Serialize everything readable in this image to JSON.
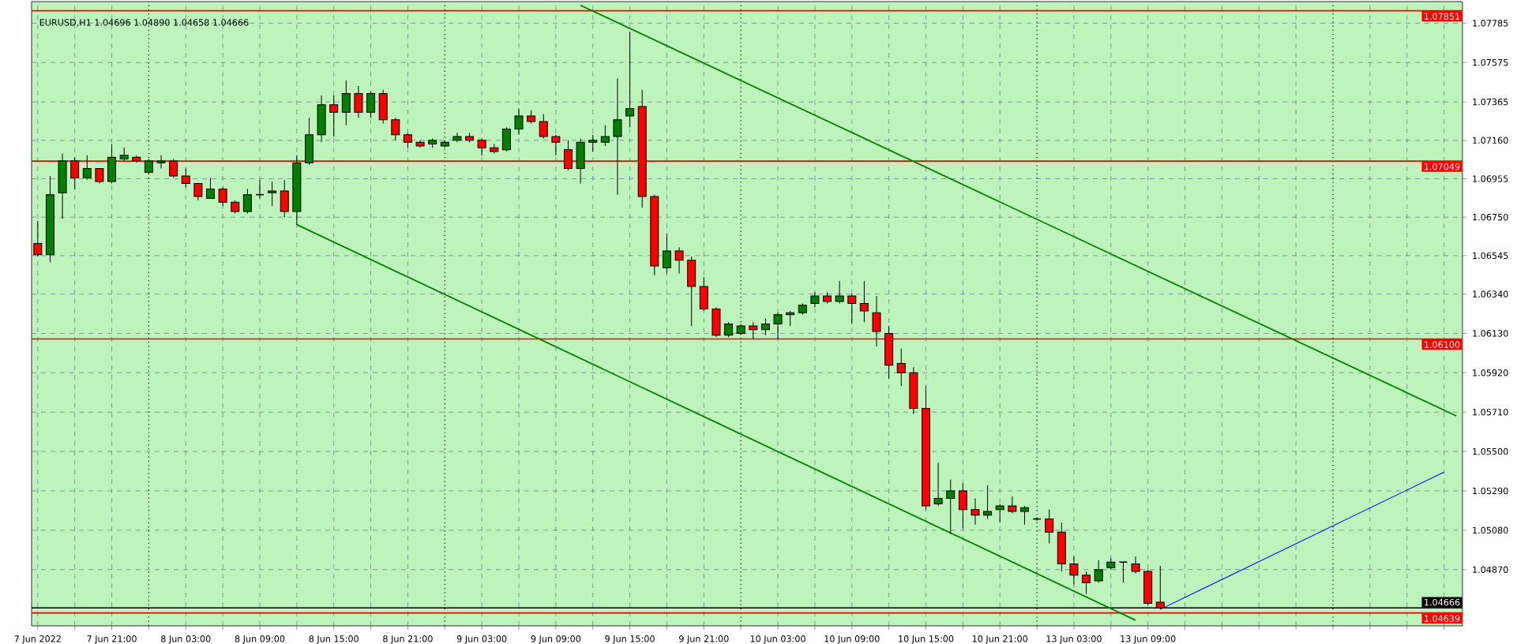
{
  "chart_data": {
    "type": "candlestick",
    "title": "EURUSD,H1  1.04696 1.04890 1.04658 1.04666",
    "categories": [
      "7 Jun 2022",
      null,
      null,
      null,
      null,
      null,
      "7 Jun 21:00",
      null,
      null,
      null,
      null,
      null,
      "8 Jun 03:00",
      null,
      null,
      null,
      null,
      null,
      "8 Jun 09:00",
      null,
      null,
      null,
      null,
      null,
      "8 Jun 15:00",
      null,
      null,
      null,
      null,
      null,
      "8 Jun 21:00",
      null,
      null,
      null,
      null,
      null,
      "9 Jun 03:00",
      null,
      null,
      null,
      null,
      null,
      "9 Jun 09:00",
      null,
      null,
      null,
      null,
      null,
      "9 Jun 15:00",
      null,
      null,
      null,
      null,
      null,
      "9 Jun 21:00",
      null,
      null,
      null,
      null,
      null,
      "10 Jun 03:00",
      null,
      null,
      null,
      null,
      null,
      "10 Jun 09:00",
      null,
      null,
      null,
      null,
      null,
      "10 Jun 15:00",
      null,
      null,
      null,
      null,
      null,
      "10 Jun 21:00",
      null,
      null,
      null,
      null,
      null,
      "13 Jun 03:00",
      null,
      null,
      null,
      null,
      null,
      "13 Jun 09:00",
      null,
      null,
      null,
      null,
      null,
      null,
      null,
      null,
      null,
      null,
      null,
      null,
      null,
      null,
      null,
      null,
      null,
      null,
      null,
      null,
      null,
      null,
      null,
      null,
      null
    ],
    "ylim": [
      1.0457,
      1.079
    ],
    "yticks": [
      1.07785,
      1.07575,
      1.07365,
      {
        "value": 1.0716,
        "label": "1.07160"
      },
      1.06955,
      {
        "value": 1.0675,
        "label": "1.06750"
      },
      1.06545,
      {
        "value": 1.0634,
        "label": "1.06340"
      },
      {
        "value": 1.0613,
        "label": "1.06130"
      },
      {
        "value": 1.0592,
        "label": "1.05920"
      },
      {
        "value": 1.0571,
        "label": "1.05710"
      },
      {
        "value": 1.055,
        "label": "1.05500"
      },
      {
        "value": 1.0529,
        "label": "1.05290"
      },
      {
        "value": 1.0508,
        "label": "1.05080"
      },
      {
        "value": 1.0487,
        "label": "1.04870"
      }
    ],
    "grid": true,
    "ref_lines": [
      {
        "axis": "y",
        "value": 1.07851,
        "label": "1.07851",
        "color": "#ff0000"
      },
      {
        "axis": "y",
        "value": 1.07049,
        "label": "1.07049",
        "color": "#ff0000"
      },
      {
        "axis": "y",
        "value": 1.061,
        "label": "1.06100",
        "color": "#ff0000"
      },
      {
        "axis": "y",
        "value": 1.04639,
        "label": "1.04639",
        "color": "#ff0000"
      },
      {
        "axis": "y",
        "value": 1.04666,
        "label": "1.04666",
        "color": "#000000"
      }
    ],
    "ohlc": [
      [
        1.0661,
        1.0673,
        1.0654,
        1.0655
      ],
      [
        1.0655,
        1.0697,
        1.0651,
        1.0687
      ],
      [
        1.0688,
        1.0709,
        1.0674,
        1.0705
      ],
      [
        1.0705,
        1.0707,
        1.069,
        1.0696
      ],
      [
        1.0696,
        1.0708,
        1.0695,
        1.0701
      ],
      [
        1.0701,
        1.0701,
        1.0693,
        1.0694
      ],
      [
        1.0694,
        1.0714,
        1.0693,
        1.0707
      ],
      [
        1.0706,
        1.0712,
        1.0705,
        1.0708
      ],
      [
        1.0707,
        1.0708,
        1.0704,
        1.0705
      ],
      [
        1.0699,
        1.0706,
        1.0698,
        1.0705
      ],
      [
        1.0704,
        1.0708,
        1.0701,
        1.0705
      ],
      [
        1.0705,
        1.0706,
        1.0696,
        1.0697
      ],
      [
        1.0697,
        1.0701,
        1.0691,
        1.0693
      ],
      [
        1.0693,
        1.0693,
        1.0684,
        1.0686
      ],
      [
        1.0685,
        1.0696,
        1.0685,
        1.069
      ],
      [
        1.069,
        1.0691,
        1.0681,
        1.0683
      ],
      [
        1.0683,
        1.0684,
        1.0677,
        1.0678
      ],
      [
        1.0678,
        1.069,
        1.0677,
        1.0687
      ],
      [
        1.0687,
        1.0695,
        1.0685,
        1.0687
      ],
      [
        1.0688,
        1.0694,
        1.0681,
        1.0689
      ],
      [
        1.0689,
        1.0695,
        1.0675,
        1.0678
      ],
      [
        1.0678,
        1.0708,
        1.0671,
        1.0704
      ],
      [
        1.0704,
        1.0728,
        1.0703,
        1.0719
      ],
      [
        1.0719,
        1.074,
        1.0715,
        1.0735
      ],
      [
        1.0735,
        1.074,
        1.0718,
        1.0731
      ],
      [
        1.0731,
        1.0748,
        1.0724,
        1.0741
      ],
      [
        1.0741,
        1.0745,
        1.0728,
        1.0731
      ],
      [
        1.0731,
        1.0742,
        1.0728,
        1.0741
      ],
      [
        1.0741,
        1.0743,
        1.0725,
        1.0727
      ],
      [
        1.0727,
        1.0728,
        1.0716,
        1.0719
      ],
      [
        1.0719,
        1.072,
        1.0712,
        1.0715
      ],
      [
        1.0715,
        1.0716,
        1.0712,
        1.0713
      ],
      [
        1.0714,
        1.0717,
        1.0712,
        1.0716
      ],
      [
        1.0713,
        1.0716,
        1.0712,
        1.0715
      ],
      [
        1.0716,
        1.072,
        1.0715,
        1.0718
      ],
      [
        1.0718,
        1.072,
        1.0715,
        1.0716
      ],
      [
        1.0716,
        1.0717,
        1.0708,
        1.0712
      ],
      [
        1.0712,
        1.0714,
        1.0709,
        1.071
      ],
      [
        1.0711,
        1.0723,
        1.071,
        1.0722
      ],
      [
        1.0722,
        1.0733,
        1.0719,
        1.0729
      ],
      [
        1.0729,
        1.0732,
        1.0725,
        1.0726
      ],
      [
        1.0726,
        1.073,
        1.0717,
        1.0718
      ],
      [
        1.0718,
        1.0719,
        1.0708,
        1.0715
      ],
      [
        1.0711,
        1.0716,
        1.07,
        1.0701
      ],
      [
        1.0701,
        1.0717,
        1.0693,
        1.0715
      ],
      [
        1.0715,
        1.0719,
        1.071,
        1.0716
      ],
      [
        1.0715,
        1.0724,
        1.0713,
        1.0718
      ],
      [
        1.0718,
        1.0749,
        1.0687,
        1.0727
      ],
      [
        1.0729,
        1.0774,
        1.0723,
        1.0733
      ],
      [
        1.0734,
        1.0743,
        1.068,
        1.0686
      ],
      [
        1.0686,
        1.0687,
        1.0644,
        1.0649
      ],
      [
        1.0648,
        1.0666,
        1.0645,
        1.0657
      ],
      [
        1.0657,
        1.0659,
        1.0645,
        1.0652
      ],
      [
        1.0652,
        1.0654,
        1.0617,
        1.0638
      ],
      [
        1.0638,
        1.0643,
        1.0625,
        1.0626
      ],
      [
        1.0626,
        1.0627,
        1.0611,
        1.0612
      ],
      [
        1.0612,
        1.0619,
        1.0611,
        1.0618
      ],
      [
        1.0613,
        1.0618,
        1.0612,
        1.0617
      ],
      [
        1.0617,
        1.0619,
        1.061,
        1.0615
      ],
      [
        1.0615,
        1.0621,
        1.0612,
        1.0618
      ],
      [
        1.0618,
        1.0624,
        1.061,
        1.0623
      ],
      [
        1.0623,
        1.0625,
        1.0617,
        1.0624
      ],
      [
        1.0624,
        1.0629,
        1.0623,
        1.0628
      ],
      [
        1.0629,
        1.0635,
        1.0627,
        1.0633
      ],
      [
        1.0633,
        1.0635,
        1.0629,
        1.063
      ],
      [
        1.063,
        1.0641,
        1.0629,
        1.0633
      ],
      [
        1.0633,
        1.0634,
        1.0618,
        1.0629
      ],
      [
        1.0629,
        1.0641,
        1.0619,
        1.0625
      ],
      [
        1.0624,
        1.0633,
        1.0606,
        1.0614
      ],
      [
        1.0613,
        1.0617,
        1.0589,
        1.0596
      ],
      [
        1.0597,
        1.0605,
        1.0585,
        1.0592
      ],
      [
        1.0592,
        1.0595,
        1.057,
        1.0573
      ],
      [
        1.0573,
        1.0585,
        1.0519,
        1.0521
      ],
      [
        1.0522,
        1.0544,
        1.0521,
        1.0525
      ],
      [
        1.0525,
        1.0535,
        1.0506,
        1.0529
      ],
      [
        1.0529,
        1.0533,
        1.0509,
        1.0519
      ],
      [
        1.0519,
        1.0525,
        1.0511,
        1.0516
      ],
      [
        1.0516,
        1.0532,
        1.0514,
        1.0518
      ],
      [
        1.0519,
        1.0522,
        1.0512,
        1.0521
      ],
      [
        1.0521,
        1.0526,
        1.0517,
        1.0518
      ],
      [
        1.0518,
        1.0521,
        1.0511,
        1.052
      ],
      [
        1.0514,
        1.0515,
        1.0513,
        1.0514
      ],
      [
        1.0514,
        1.0519,
        1.0501,
        1.0507
      ],
      [
        1.0507,
        1.0512,
        1.0486,
        1.049
      ],
      [
        1.049,
        1.0494,
        1.0479,
        1.0484
      ],
      [
        1.0484,
        1.0486,
        1.0474,
        1.048
      ],
      [
        1.0481,
        1.0492,
        1.048,
        1.0487
      ],
      [
        1.0488,
        1.0493,
        1.0487,
        1.0491
      ],
      [
        1.0491,
        1.0491,
        1.048,
        1.0491
      ],
      [
        1.049,
        1.0494,
        1.0485,
        1.0486
      ],
      [
        1.0486,
        1.0487,
        1.0468,
        1.0469
      ],
      [
        1.04696,
        1.0489,
        1.04658,
        1.04666
      ],
      null,
      null,
      null,
      null,
      null,
      null,
      null,
      null,
      null,
      null,
      null,
      null,
      null,
      null,
      null,
      null,
      null,
      null,
      null,
      null,
      null,
      null,
      null,
      null
    ],
    "colors": [
      "#ff0000",
      "#008000",
      "#008000",
      "#ff0000",
      "#008000",
      "#ff0000",
      "#008000",
      "#008000",
      "#ff0000",
      "#008000",
      "#008000",
      "#ff0000",
      "#ff0000",
      "#ff0000",
      "#008000",
      "#ff0000",
      "#ff0000",
      "#008000",
      "#000000",
      "#008000",
      "#ff0000",
      "#008000",
      "#008000",
      "#008000",
      "#ff0000",
      "#008000",
      "#ff0000",
      "#008000",
      "#ff0000",
      "#ff0000",
      "#ff0000",
      "#ff0000",
      "#008000",
      "#008000",
      "#008000",
      "#ff0000",
      "#ff0000",
      "#ff0000",
      "#008000",
      "#008000",
      "#ff0000",
      "#ff0000",
      "#ff0000",
      "#ff0000",
      "#008000",
      "#008000",
      "#008000",
      "#008000",
      "#008000",
      "#ff0000",
      "#ff0000",
      "#008000",
      "#ff0000",
      "#ff0000",
      "#ff0000",
      "#ff0000",
      "#008000",
      "#008000",
      "#ff0000",
      "#008000",
      "#008000",
      "#008000",
      "#008000",
      "#008000",
      "#ff0000",
      "#008000",
      "#ff0000",
      "#ff0000",
      "#ff0000",
      "#ff0000",
      "#ff0000",
      "#ff0000",
      "#ff0000",
      "#008000",
      "#008000",
      "#ff0000",
      "#ff0000",
      "#008000",
      "#008000",
      "#ff0000",
      "#008000",
      "#000000",
      "#ff0000",
      "#ff0000",
      "#ff0000",
      "#ff0000",
      "#008000",
      "#008000",
      "#000000",
      "#ff0000",
      "#ff0000",
      "#ff0000",
      null,
      null,
      null,
      null,
      null,
      null,
      null,
      null,
      null,
      null,
      null,
      null,
      null,
      null,
      null,
      null,
      null,
      null,
      null,
      null,
      null,
      null,
      null,
      null
    ],
    "series": [
      {
        "type": "line",
        "color": "#008000",
        "values": [
          null,
          null,
          null,
          null,
          null,
          null,
          null,
          null,
          null,
          null,
          null,
          null,
          null,
          null,
          null,
          null,
          null,
          null,
          null,
          null,
          null,
          null,
          null,
          null,
          null,
          null,
          null,
          null,
          null,
          null,
          null,
          null,
          null,
          null,
          null,
          null,
          null,
          null,
          null,
          null,
          null,
          null,
          null,
          null,
          1.0788,
          null,
          null,
          null,
          null,
          null,
          null,
          null,
          null,
          null,
          null,
          null,
          null,
          null,
          null,
          null,
          null,
          null,
          null,
          null,
          null,
          null,
          null,
          null,
          null,
          null,
          null,
          null,
          null,
          null,
          null,
          null,
          null,
          null,
          null,
          null,
          null,
          null,
          null,
          null,
          null,
          null,
          null,
          null,
          null,
          null,
          null,
          null,
          null,
          null,
          null,
          null,
          null,
          null,
          null,
          null,
          null,
          null,
          null,
          null,
          null,
          null,
          null,
          null,
          null,
          null,
          null,
          null,
          null,
          null,
          null,
          1.0569
        ]
      },
      {
        "type": "line",
        "color": "#008000",
        "values": [
          null,
          null,
          null,
          null,
          null,
          null,
          null,
          null,
          null,
          null,
          null,
          null,
          null,
          null,
          null,
          null,
          null,
          null,
          null,
          null,
          null,
          1.0671,
          null,
          null,
          null,
          null,
          null,
          null,
          null,
          null,
          null,
          null,
          null,
          null,
          null,
          null,
          null,
          null,
          null,
          null,
          null,
          null,
          null,
          null,
          null,
          null,
          null,
          null,
          null,
          null,
          null,
          null,
          null,
          null,
          null,
          null,
          null,
          null,
          null,
          null,
          null,
          null,
          null,
          null,
          null,
          null,
          null,
          null,
          null,
          null,
          null,
          null,
          null,
          null,
          null,
          null,
          null,
          null,
          null,
          null,
          null,
          null,
          null,
          null,
          null,
          null,
          null,
          null,
          null,
          1.046,
          null,
          null,
          null,
          null,
          null,
          null,
          null,
          null,
          null,
          null,
          null,
          null,
          null,
          null,
          null,
          null,
          null,
          null,
          null,
          null,
          null,
          null,
          null,
          null,
          null,
          null
        ]
      },
      {
        "type": "line",
        "color": "#0000ff",
        "values": [
          null,
          null,
          null,
          null,
          null,
          null,
          null,
          null,
          null,
          null,
          null,
          null,
          null,
          null,
          null,
          null,
          null,
          null,
          null,
          null,
          null,
          null,
          null,
          null,
          null,
          null,
          null,
          null,
          null,
          null,
          null,
          null,
          null,
          null,
          null,
          null,
          null,
          null,
          null,
          null,
          null,
          null,
          null,
          null,
          null,
          null,
          null,
          null,
          null,
          null,
          null,
          null,
          null,
          null,
          null,
          null,
          null,
          null,
          null,
          null,
          null,
          null,
          null,
          null,
          null,
          null,
          null,
          null,
          null,
          null,
          null,
          null,
          null,
          null,
          null,
          null,
          null,
          null,
          null,
          null,
          null,
          null,
          null,
          null,
          null,
          null,
          null,
          null,
          null,
          null,
          null,
          1.04658,
          null,
          null,
          null,
          null,
          null,
          null,
          null,
          null,
          null,
          null,
          null,
          null,
          null,
          null,
          null,
          null,
          null,
          null,
          null,
          null,
          null,
          null,
          1.0539,
          null
        ]
      }
    ]
  }
}
